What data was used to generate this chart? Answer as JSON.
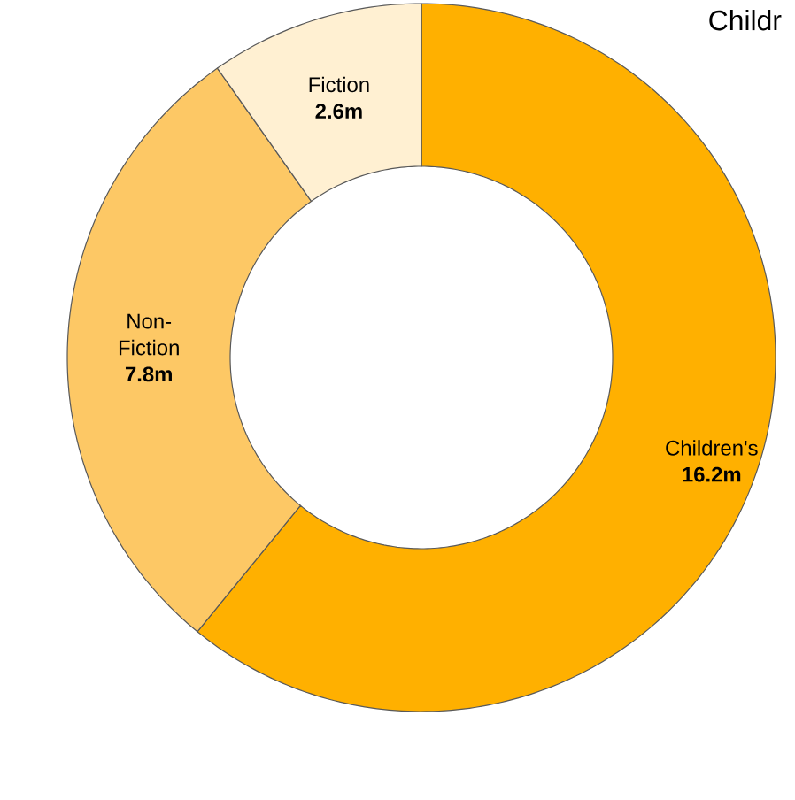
{
  "chart_data": {
    "type": "donut",
    "categories": [
      "Children's",
      "Non-Fiction",
      "Fiction"
    ],
    "values": [
      16.2,
      7.8,
      2.6
    ],
    "value_labels": [
      "16.2m",
      "7.8m",
      "2.6m"
    ],
    "colors": [
      "#ffb000",
      "#fdc865",
      "#fff0d2"
    ],
    "annotations": [
      "Childr"
    ]
  }
}
